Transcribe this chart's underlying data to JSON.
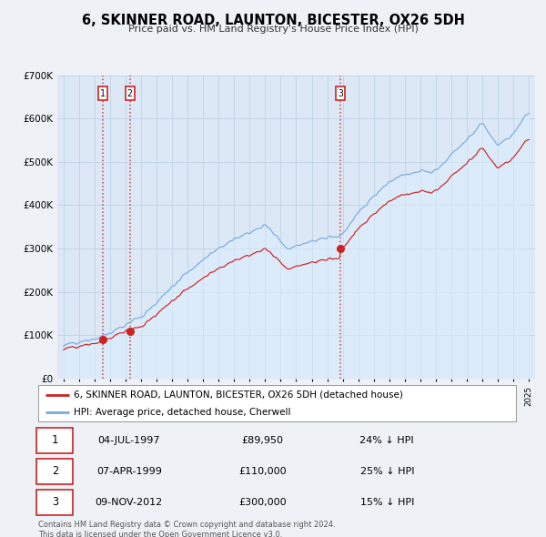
{
  "title": "6, SKINNER ROAD, LAUNTON, BICESTER, OX26 5DH",
  "subtitle": "Price paid vs. HM Land Registry's House Price Index (HPI)",
  "sale_label": "6, SKINNER ROAD, LAUNTON, BICESTER, OX26 5DH (detached house)",
  "hpi_label": "HPI: Average price, detached house, Cherwell",
  "sale_color": "#cc2222",
  "hpi_color": "#7aaadd",
  "hpi_fill_color": "#ddeeff",
  "background_color": "#eef2f7",
  "plot_bg_color": "#dce8f5",
  "grid_color": "#b8cfe0",
  "transactions": [
    {
      "num": 1,
      "date_str": "04-JUL-1997",
      "price": 89950,
      "year": 1997.54,
      "pct": "24% ↓ HPI"
    },
    {
      "num": 2,
      "date_str": "07-APR-1999",
      "price": 110000,
      "year": 1999.27,
      "pct": "25% ↓ HPI"
    },
    {
      "num": 3,
      "date_str": "09-NOV-2012",
      "price": 300000,
      "year": 2012.86,
      "pct": "15% ↓ HPI"
    }
  ],
  "footer": "Contains HM Land Registry data © Crown copyright and database right 2024.\nThis data is licensed under the Open Government Licence v3.0.",
  "ylim": [
    0,
    700000
  ],
  "yticks": [
    0,
    100000,
    200000,
    300000,
    400000,
    500000,
    600000,
    700000
  ],
  "ytick_labels": [
    "£0",
    "£100K",
    "£200K",
    "£300K",
    "£400K",
    "£500K",
    "£600K",
    "£700K"
  ],
  "xmin": 1994.6,
  "xmax": 2025.4
}
